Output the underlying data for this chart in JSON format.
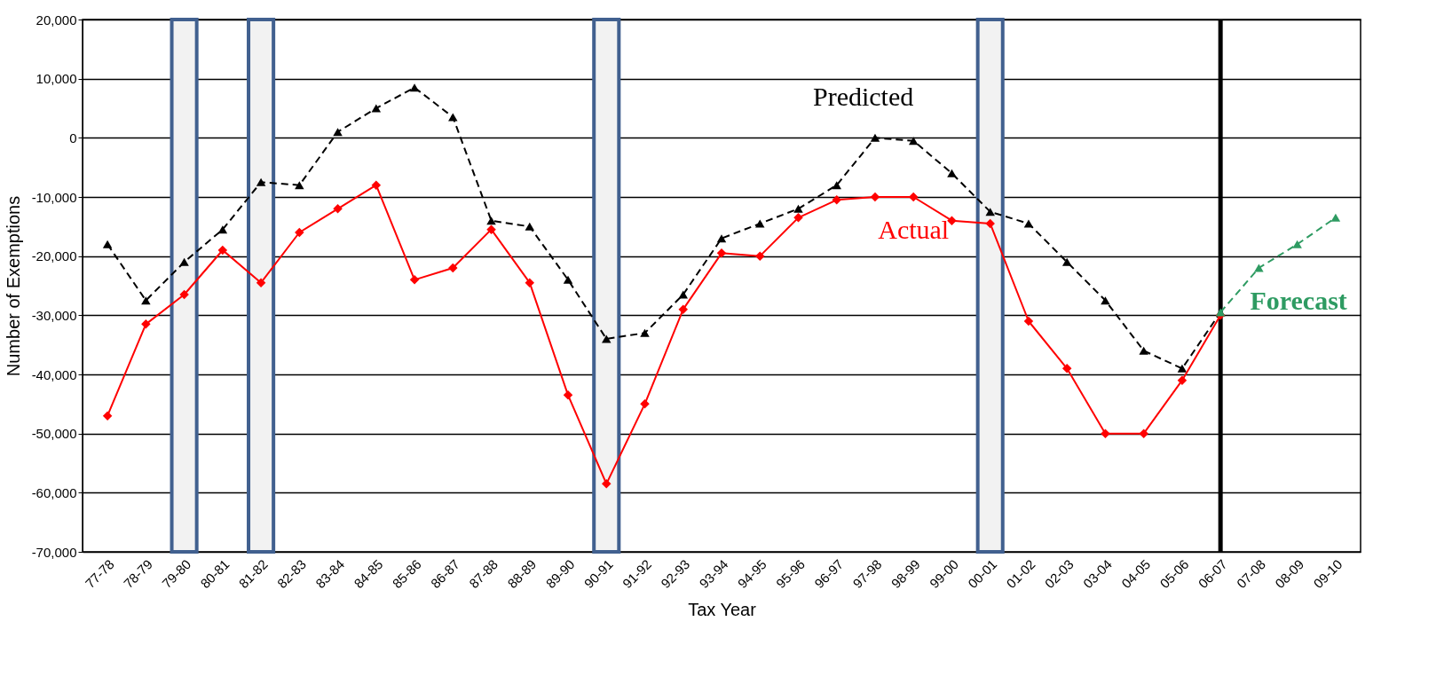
{
  "chart_data": {
    "type": "line",
    "xlabel": "Tax Year",
    "ylabel": "Number of Exemptions",
    "categories": [
      "77-78",
      "78-79",
      "79-80",
      "80-81",
      "81-82",
      "82-83",
      "83-84",
      "84-85",
      "85-86",
      "86-87",
      "87-88",
      "88-89",
      "89-90",
      "90-91",
      "91-92",
      "92-93",
      "93-94",
      "94-95",
      "95-96",
      "96-97",
      "97-98",
      "98-99",
      "99-00",
      "00-01",
      "01-02",
      "02-03",
      "03-04",
      "04-05",
      "05-06",
      "06-07",
      "07-08",
      "08-09",
      "09-10"
    ],
    "series": [
      {
        "name": "Predicted",
        "color": "#000000",
        "marker": "triangle",
        "line_style": "dashed",
        "values": [
          -18000,
          -27500,
          -21000,
          -15500,
          -7500,
          -8000,
          1000,
          5000,
          8500,
          3500,
          -14000,
          -15000,
          -24000,
          -34000,
          -33000,
          -26500,
          -17000,
          -14500,
          -12000,
          -8000,
          0,
          -500,
          -6000,
          -12500,
          -14500,
          -21000,
          -27500,
          -36000,
          -39000,
          -29500,
          null,
          null,
          null
        ]
      },
      {
        "name": "Actual",
        "color": "#ff0000",
        "marker": "diamond",
        "line_style": "solid",
        "values": [
          -47000,
          -31500,
          -26500,
          -19000,
          -24500,
          -16000,
          -12000,
          -8000,
          -24000,
          -22000,
          -15500,
          -24500,
          -43500,
          -58500,
          -45000,
          -29000,
          -19500,
          -20000,
          -13500,
          -10500,
          -10000,
          -10000,
          -14000,
          -14500,
          -31000,
          -39000,
          -50000,
          -50000,
          -41000,
          -30000,
          null,
          null,
          null
        ]
      },
      {
        "name": "Forecast",
        "color": "#2e9b62",
        "marker": "triangle",
        "line_style": "dashed",
        "values": [
          null,
          null,
          null,
          null,
          null,
          null,
          null,
          null,
          null,
          null,
          null,
          null,
          null,
          null,
          null,
          null,
          null,
          null,
          null,
          null,
          null,
          null,
          null,
          null,
          null,
          null,
          null,
          null,
          null,
          -29500,
          -22000,
          -18000,
          -13500
        ]
      }
    ],
    "ylim": [
      -70000,
      20000
    ],
    "yticks": [
      {
        "value": -70000,
        "label": "-70,000"
      },
      {
        "value": -60000,
        "label": "-60,000"
      },
      {
        "value": -50000,
        "label": "-50,000"
      },
      {
        "value": -40000,
        "label": "-40,000"
      },
      {
        "value": -30000,
        "label": "-30,000"
      },
      {
        "value": -20000,
        "label": "-20,000"
      },
      {
        "value": -10000,
        "label": "-10,000"
      },
      0,
      {
        "value": 10000,
        "label": "10,000"
      },
      {
        "value": 20000,
        "label": "20,000"
      }
    ],
    "grid": "y",
    "legend": false,
    "bands": [
      {
        "axis": "x",
        "from": "79-80",
        "to": "79-80",
        "color": "#f2f2f2"
      },
      {
        "axis": "x",
        "from": "81-82",
        "to": "81-82",
        "color": "#f2f2f2"
      },
      {
        "axis": "x",
        "from": "90-91",
        "to": "90-91",
        "color": "#f2f2f2"
      },
      {
        "axis": "x",
        "from": "00-01",
        "to": "00-01",
        "color": "#f2f2f2"
      }
    ],
    "ref_lines": [
      {
        "axis": "x",
        "value": "06-07",
        "color": "#000000"
      }
    ]
  }
}
